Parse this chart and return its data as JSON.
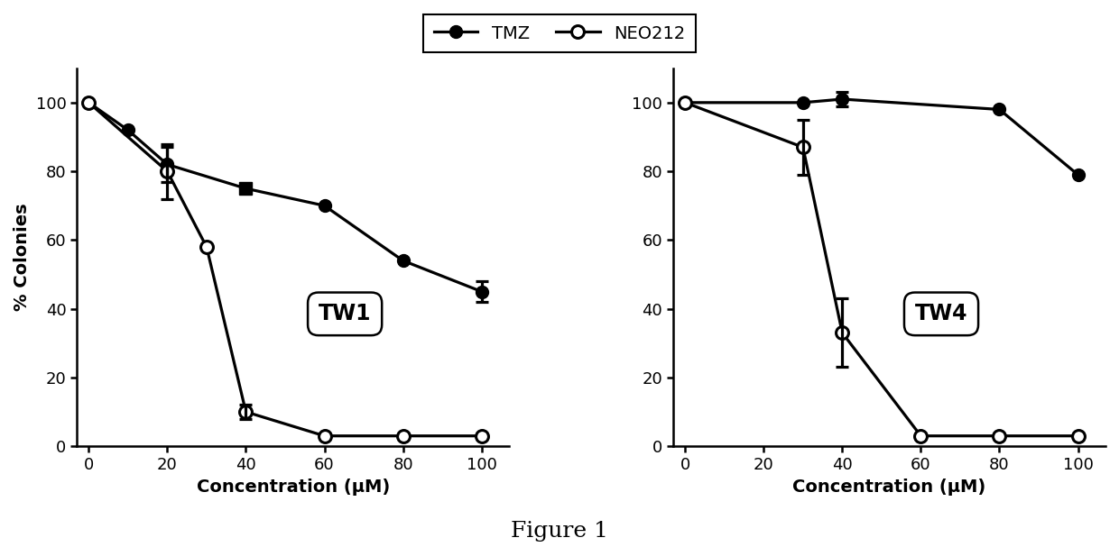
{
  "tw1": {
    "tmz_x": [
      0,
      10,
      20,
      40,
      60,
      80,
      100
    ],
    "tmz_y": [
      100,
      92,
      82,
      75,
      70,
      54,
      45
    ],
    "tmz_yerr": [
      0,
      0,
      5,
      0,
      0,
      0,
      3
    ],
    "tmz_markers": [
      "o",
      "o",
      "o",
      "s",
      "o",
      "o",
      "o"
    ],
    "neo_x": [
      0,
      20,
      30,
      40,
      60,
      80,
      100
    ],
    "neo_y": [
      100,
      80,
      58,
      10,
      3,
      3,
      3
    ],
    "neo_yerr": [
      0,
      8,
      0,
      2,
      0,
      0,
      0
    ],
    "label": "TW1"
  },
  "tw4": {
    "tmz_x": [
      0,
      30,
      40,
      80,
      100
    ],
    "tmz_y": [
      100,
      100,
      101,
      98,
      79
    ],
    "tmz_yerr": [
      0,
      0,
      2,
      0,
      0
    ],
    "tmz_markers": [
      "o",
      "o",
      "o",
      "o",
      "o"
    ],
    "neo_x": [
      0,
      30,
      40,
      60,
      80,
      100
    ],
    "neo_y": [
      100,
      87,
      33,
      3,
      3,
      3
    ],
    "neo_yerr": [
      0,
      8,
      10,
      0,
      0,
      0
    ],
    "label": "TW4"
  },
  "ylabel": "% Colonies",
  "xlabel": "Concentration (μM)",
  "figure_caption": "Figure 1",
  "ylim": [
    0,
    110
  ],
  "xlim": [
    -3,
    107
  ],
  "yticks": [
    0,
    20,
    40,
    60,
    80,
    100
  ],
  "xticks": [
    0,
    20,
    40,
    60,
    80,
    100
  ],
  "line_color": "#000000",
  "linewidth": 2.3,
  "markersize": 10,
  "markersize_sq": 10,
  "legend_tmz": "TMZ",
  "legend_neo": "NEO212",
  "label_fontsize": 14,
  "tick_fontsize": 13,
  "caption_fontsize": 18
}
